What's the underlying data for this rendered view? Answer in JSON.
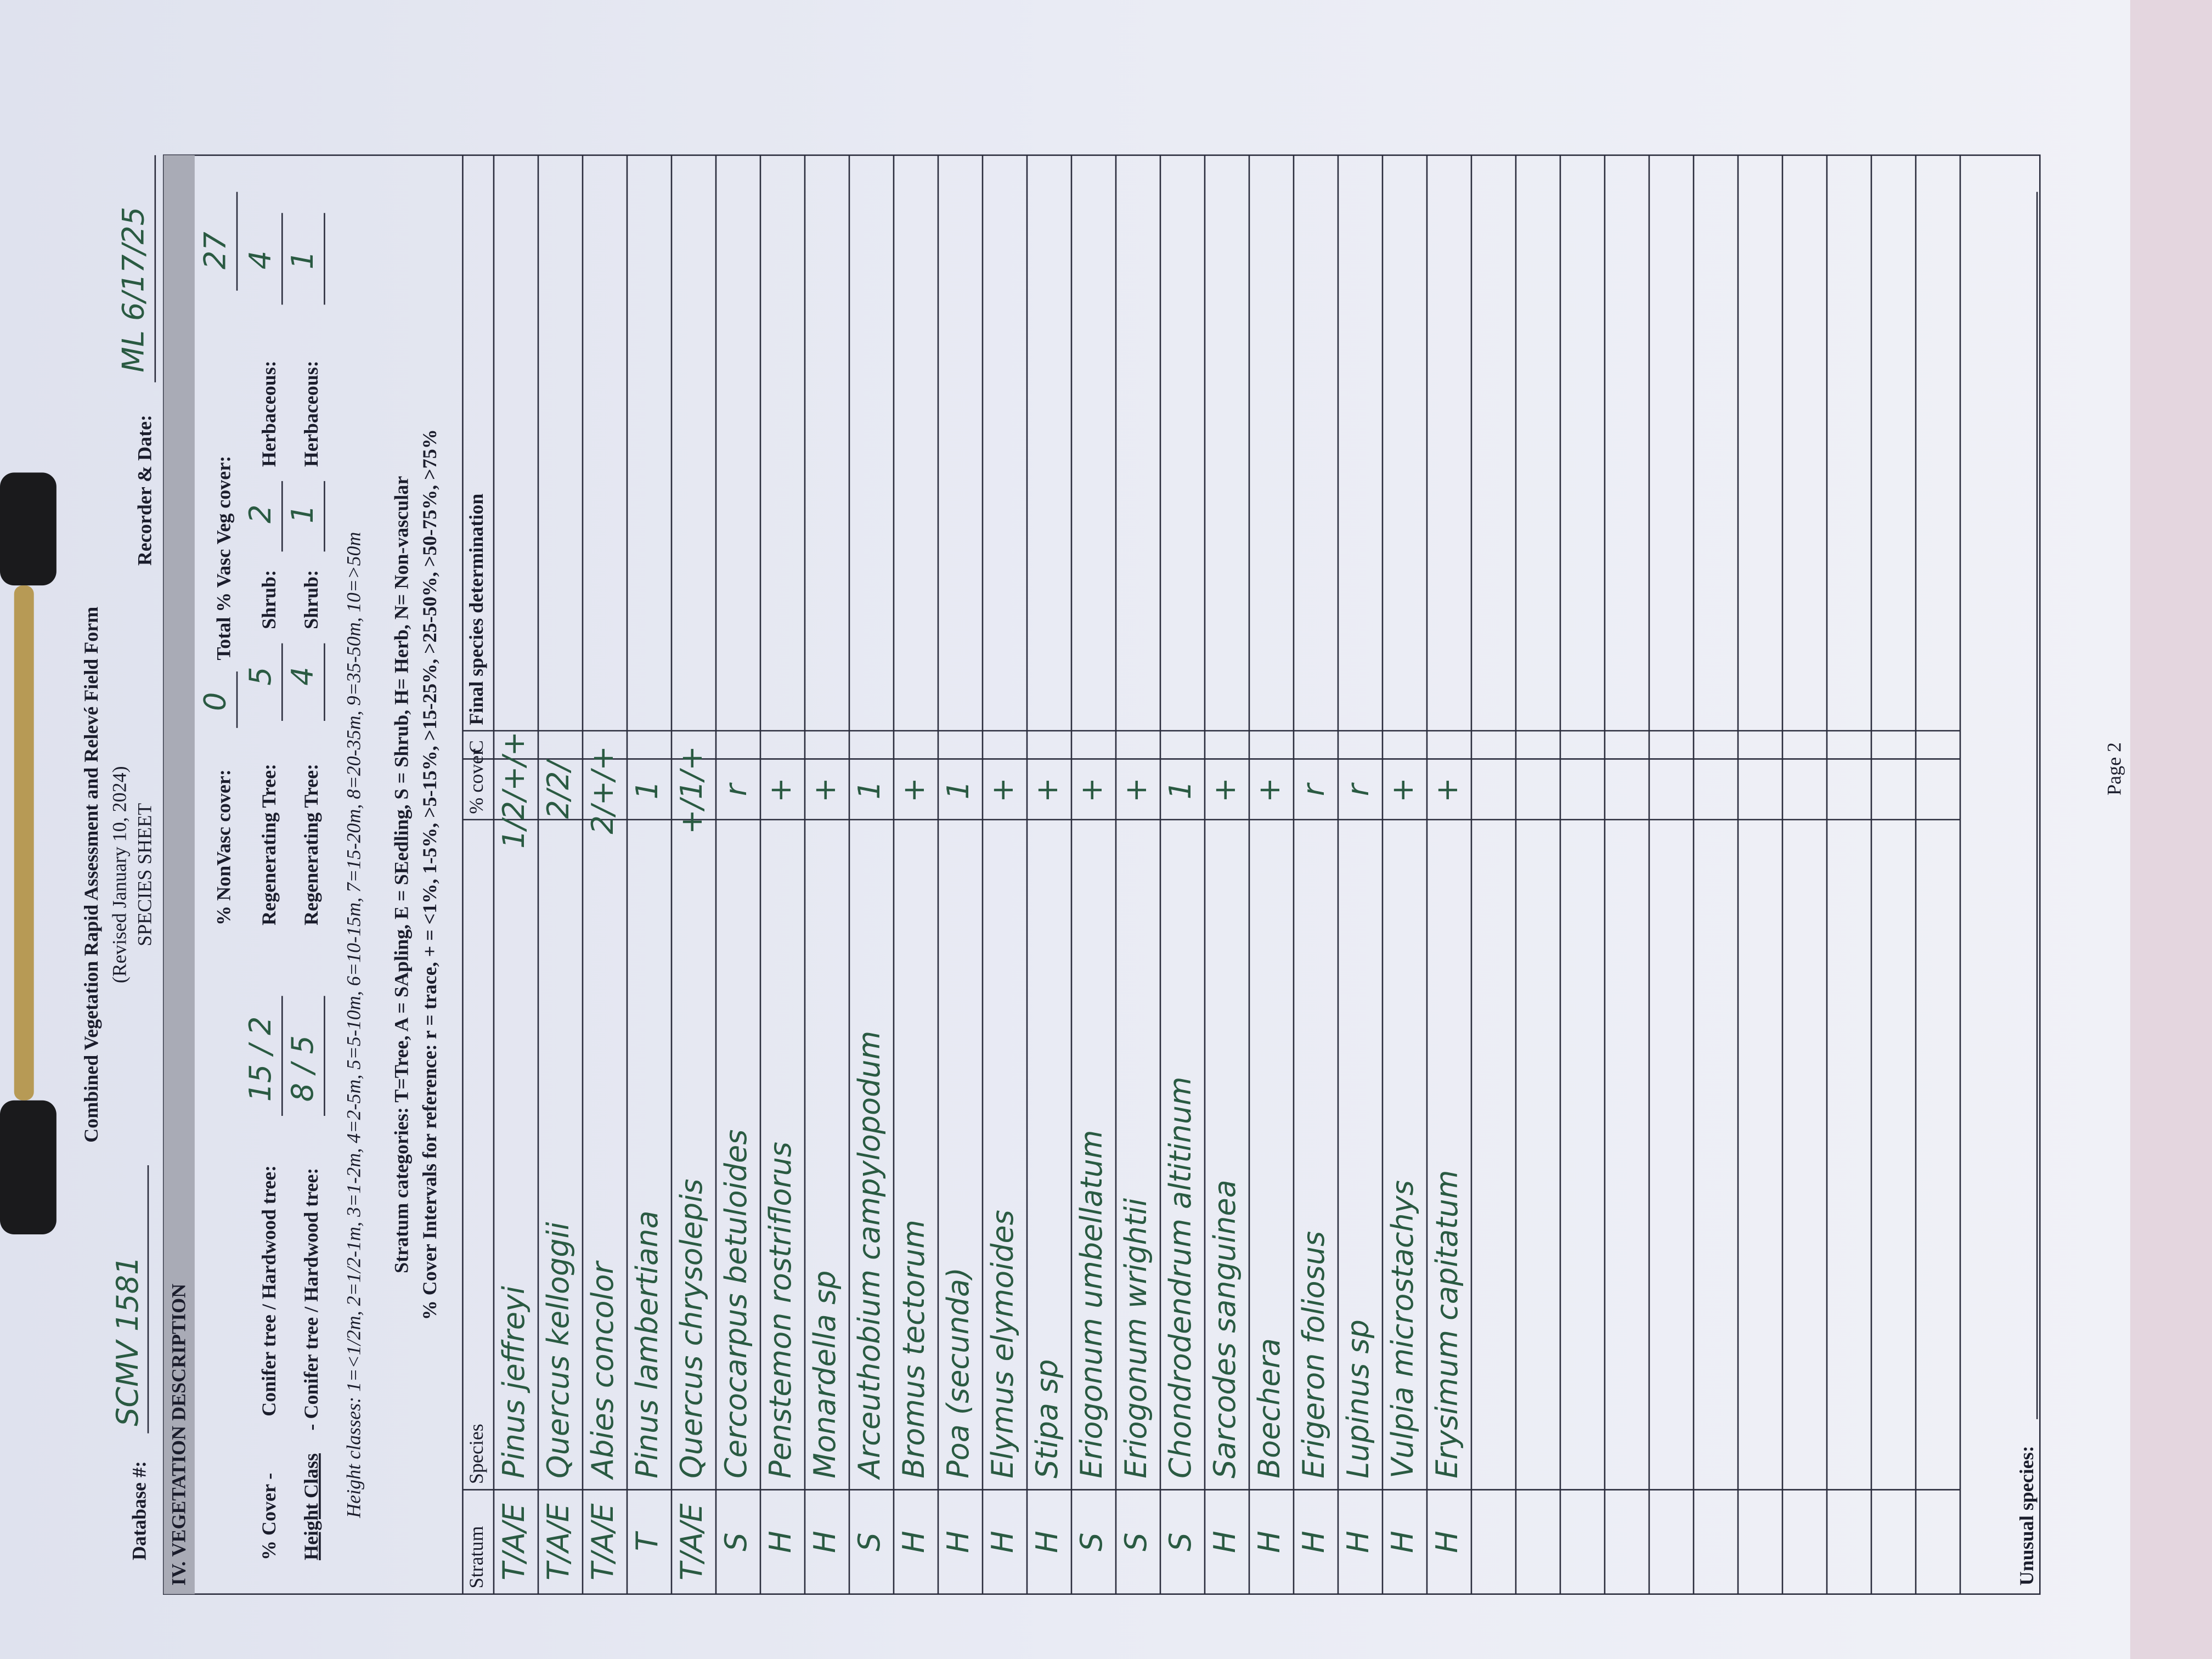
{
  "header": {
    "database_label": "Database #:",
    "database": "SCMV 1581",
    "title": "Combined Vegetation Rapid Assessment and Relevé Field Form",
    "revised": "(Revised January 10, 2024)",
    "sheet": "SPECIES SHEET",
    "recorder_label": "Recorder & Date:",
    "recorder": "ML 6/17/25"
  },
  "section": {
    "title": "IV. VEGETATION DESCRIPTION",
    "nonvasc_label": "% NonVasc cover:",
    "nonvasc": "0",
    "total_label": "Total % Vasc Veg cover:",
    "total": "27",
    "cover": {
      "label": "% Cover -",
      "tree_label": "Conifer tree / Hardwood tree:",
      "tree": "15 / 2",
      "regen_label": "Regenerating Tree:",
      "regen": "5",
      "shrub_label": "Shrub:",
      "shrub": "2",
      "herb_label": "Herbaceous:",
      "herb": "4"
    },
    "height": {
      "label": "Height Class",
      "tree_label": "- Conifer tree / Hardwood tree:",
      "tree": "8 / 5",
      "regen_label": "Regenerating Tree:",
      "regen": "4",
      "shrub_label": "Shrub:",
      "shrub": "1",
      "herb_label": "Herbaceous:",
      "herb": "1"
    },
    "height_classes": "Height classes: 1=<1/2m, 2=1/2-1m, 3=1-2m, 4=2-5m, 5=5-10m, 6=10-15m, 7=15-20m, 8=20-35m, 9=35-50m, 10=>50m",
    "stratum_categories": "Stratum categories: T=Tree, A = SApling, E = SEedling, S = Shrub, H= Herb, N= Non-vascular",
    "cover_intervals": "% Cover Intervals for reference: r = trace, + = <1%, 1-5%, >5-15%, >15-25%, >25-50%, >50-75%, >75%"
  },
  "table": {
    "columns": [
      "Stratum",
      "Species",
      "% cover",
      "C",
      "Final species determination"
    ],
    "rows": [
      [
        "T/A/E",
        "Pinus jeffreyi",
        "1/2/+/+"
      ],
      [
        "T/A/E",
        "Quercus kelloggii",
        "2/2/"
      ],
      [
        "T/A/E",
        "Abies concolor",
        "2/+/+"
      ],
      [
        "T",
        "Pinus lambertiana",
        "1"
      ],
      [
        "T/A/E",
        "Quercus chrysolepis",
        "+/1/+"
      ],
      [
        "S",
        "Cercocarpus betuloides",
        "r"
      ],
      [
        "H",
        "Penstemon rostriflorus",
        "+"
      ],
      [
        "H",
        "Monardella sp",
        "+"
      ],
      [
        "S",
        "Arceuthobium campylopodum",
        "1"
      ],
      [
        "H",
        "Bromus tectorum",
        "+"
      ],
      [
        "H",
        "Poa (secunda)",
        "1"
      ],
      [
        "H",
        "Elymus elymoides",
        "+"
      ],
      [
        "H",
        "Stipa sp",
        "+"
      ],
      [
        "S",
        "Eriogonum umbellatum",
        "+"
      ],
      [
        "S",
        "Eriogonum wrightii",
        "+"
      ],
      [
        "S",
        "Chondrodendrum altitinum",
        "1"
      ],
      [
        "H",
        "Sarcodes sanguinea",
        "+"
      ],
      [
        "H",
        "Boechera",
        "+"
      ],
      [
        "H",
        "Erigeron foliosus",
        "r"
      ],
      [
        "H",
        "Lupinus sp",
        "r"
      ],
      [
        "H",
        "Vulpia microstachys",
        "+"
      ],
      [
        "H",
        "Erysimum capitatum",
        "+"
      ]
    ]
  },
  "footer": {
    "unusual_label": "Unusual species:",
    "page": "Page 2"
  }
}
